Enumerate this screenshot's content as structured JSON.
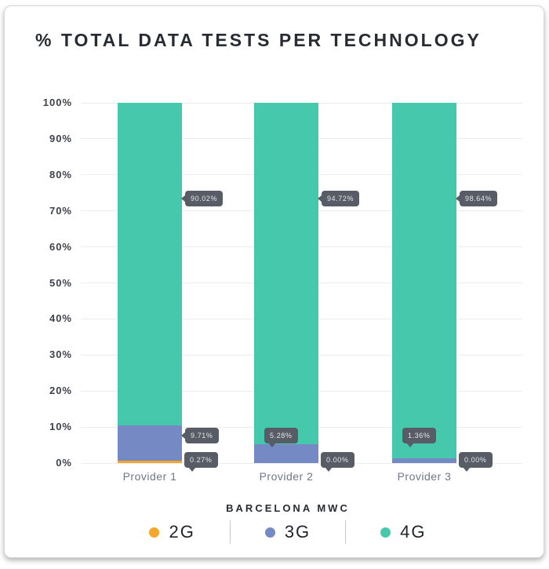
{
  "title": "% TOTAL DATA TESTS PER TECHNOLOGY",
  "chart_data": {
    "type": "bar",
    "stacked": true,
    "title": "% TOTAL DATA TESTS PER TECHNOLOGY",
    "categories": [
      "Provider 1",
      "Provider 2",
      "Provider 3"
    ],
    "series": [
      {
        "name": "2G",
        "color": "#F5A62B",
        "values": [
          0.27,
          0.0,
          0.0
        ],
        "value_labels": [
          "0.27%",
          "0.00%",
          "0.00%"
        ]
      },
      {
        "name": "3G",
        "color": "#7589C5",
        "values": [
          9.71,
          5.28,
          1.36
        ],
        "value_labels": [
          "9.71%",
          "5.28%",
          "1.36%"
        ]
      },
      {
        "name": "4G",
        "color": "#46C8AC",
        "values": [
          90.02,
          94.72,
          98.64
        ],
        "value_labels": [
          "90.02%",
          "94.72%",
          "98.64%"
        ]
      }
    ],
    "xlabel": "BARCELONA MWC",
    "ylabel": "",
    "ylim": [
      0,
      100
    ],
    "ytick_labels": [
      "0%",
      "10%",
      "20%",
      "30%",
      "40%",
      "50%",
      "60%",
      "70%",
      "80%",
      "90%",
      "100%"
    ],
    "grid": true,
    "legend_position": "bottom"
  },
  "legend": {
    "items": [
      {
        "label": "2G",
        "color": "#F5A62B"
      },
      {
        "label": "3G",
        "color": "#7589C5"
      },
      {
        "label": "4G",
        "color": "#46C8AC"
      }
    ]
  },
  "colors": {
    "tooltip_bg": "#575C66",
    "tooltip_text": "#E4E6EA",
    "gridline": "#EDEDED",
    "title_text": "#272B33",
    "tick_text": "#3D414A",
    "category_text": "#6F7889"
  }
}
